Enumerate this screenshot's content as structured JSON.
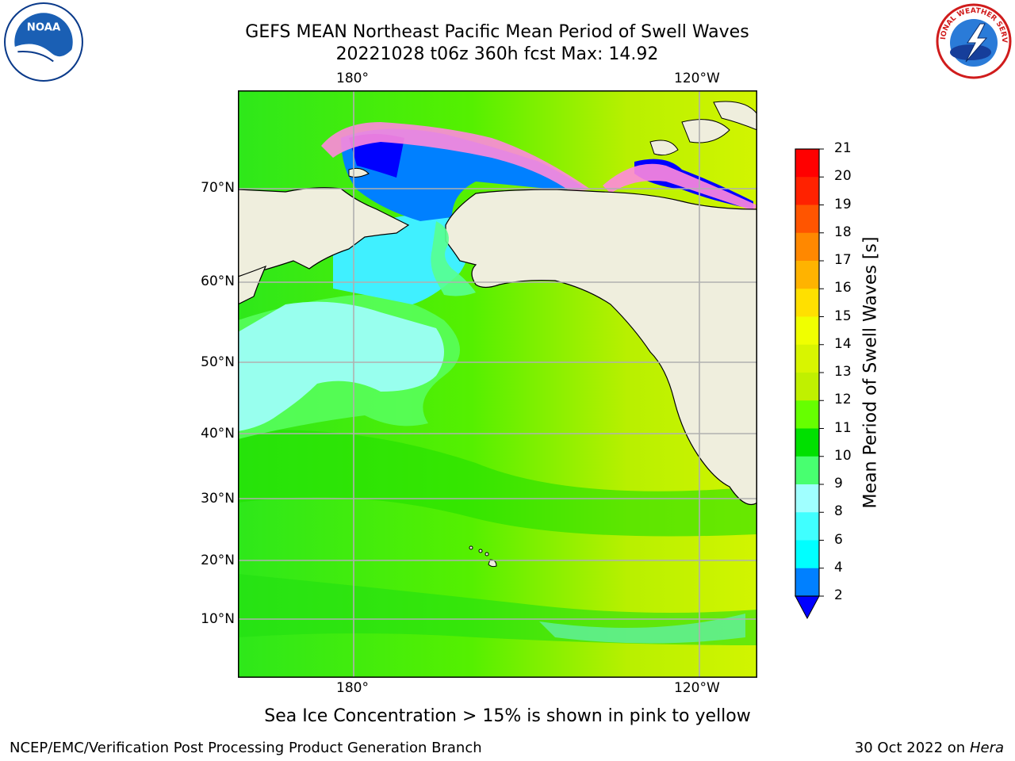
{
  "title": {
    "line1": "GEFS MEAN Northeast Pacific Mean Period of Swell Waves",
    "line2": "20221028 t06z 360h fcst   Max: 14.92"
  },
  "logos": {
    "left": {
      "icon": "noaa-logo",
      "text": "NOAA"
    },
    "right": {
      "icon": "nws-logo",
      "text": "NATIONAL WEATHER SERVICE"
    }
  },
  "map": {
    "lon_labels": [
      "180°",
      "120°W"
    ],
    "lat_labels": [
      "70°N",
      "60°N",
      "50°N",
      "40°N",
      "30°N",
      "20°N",
      "10°N"
    ],
    "land_color": "#efeedd",
    "grid_color": "#b0b0b0"
  },
  "colorbar": {
    "label": "Mean Period of Swell Waves [s]",
    "ticks": [
      "21",
      "20",
      "19",
      "18",
      "17",
      "16",
      "15",
      "14",
      "13",
      "12",
      "11",
      "10",
      "9",
      "8",
      "6",
      "4",
      "2"
    ],
    "colors": [
      "#ff0000",
      "#ff2200",
      "#ff5500",
      "#ff8800",
      "#ffb300",
      "#ffe000",
      "#f0ff00",
      "#d8f500",
      "#c0f000",
      "#66ff00",
      "#00e000",
      "#48ff70",
      "#a0ffff",
      "#40ffff",
      "#00ffff",
      "#0080ff"
    ],
    "under_color": "#0000ff"
  },
  "note": "Sea Ice Concentration > 15% is shown in pink to yellow",
  "footer": {
    "left": "NCEP/EMC/Verification Post Processing Product Generation Branch",
    "right_prefix": "30 Oct 2022 on ",
    "right_machine": "Hera"
  }
}
